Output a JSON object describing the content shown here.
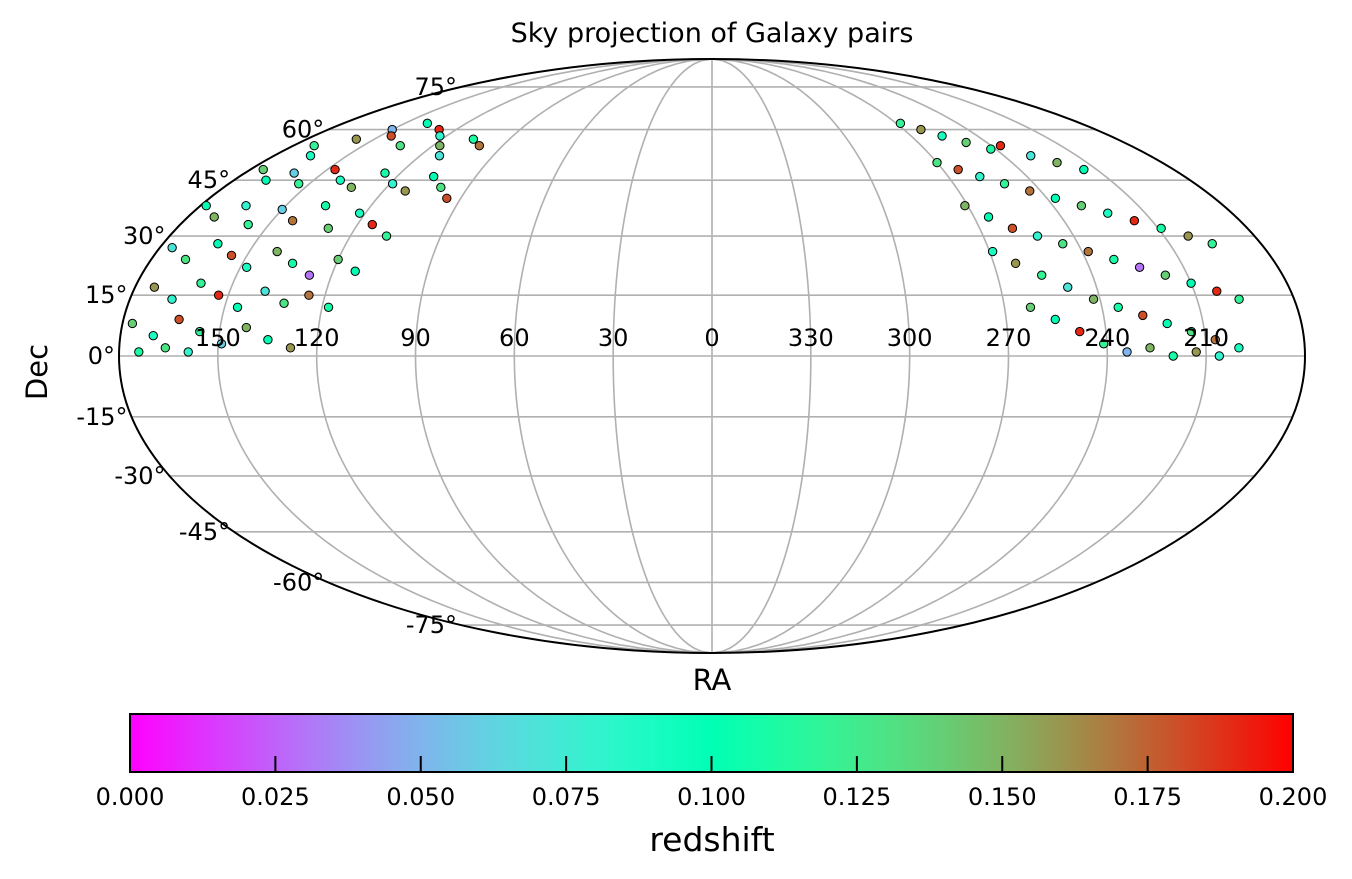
{
  "chart_data": {
    "type": "scatter",
    "projection": "mollweide",
    "title": "Sky projection of Galaxy pairs",
    "xlabel": "RA",
    "ylabel": "Dec",
    "ra_tick_labels": [
      "150",
      "120",
      "90",
      "60",
      "30",
      "0",
      "330",
      "300",
      "270",
      "240",
      "210"
    ],
    "ra_tick_values": [
      150,
      120,
      90,
      60,
      30,
      0,
      330,
      300,
      270,
      240,
      210
    ],
    "dec_tick_labels": [
      "-75°",
      "-60°",
      "-45°",
      "-30°",
      "-15°",
      "0°",
      "15°",
      "30°",
      "45°",
      "60°",
      "75°"
    ],
    "dec_tick_values": [
      -75,
      -60,
      -45,
      -30,
      -15,
      0,
      15,
      30,
      45,
      60,
      75
    ],
    "grid": true,
    "colorbar": {
      "label": "redshift",
      "colormap": "rainbow",
      "range": [
        0,
        0.2
      ],
      "tick_labels": [
        "0.000",
        "0.025",
        "0.050",
        "0.075",
        "0.100",
        "0.125",
        "0.150",
        "0.175",
        "0.200"
      ],
      "tick_values": [
        0,
        0.025,
        0.05,
        0.075,
        0.1,
        0.125,
        0.15,
        0.175,
        0.2
      ],
      "orientation": "horizontal",
      "placement": "bottom"
    },
    "points": [
      {
        "ra": 171,
        "dec": 55,
        "z": 0.12
      },
      {
        "ra": 165,
        "dec": 52,
        "z": 0.09
      },
      {
        "ra": 158,
        "dec": 57,
        "z": 0.16
      },
      {
        "ra": 150,
        "dec": 60,
        "z": 0.05
      },
      {
        "ra": 145,
        "dec": 58,
        "z": 0.18
      },
      {
        "ra": 139,
        "dec": 62,
        "z": 0.1
      },
      {
        "ra": 134,
        "dec": 55,
        "z": 0.13
      },
      {
        "ra": 128,
        "dec": 60,
        "z": 0.19
      },
      {
        "ra": 123,
        "dec": 58,
        "z": 0.08
      },
      {
        "ra": 117,
        "dec": 55,
        "z": 0.15
      },
      {
        "ra": 112,
        "dec": 52,
        "z": 0.07
      },
      {
        "ra": 106,
        "dec": 57,
        "z": 0.11
      },
      {
        "ra": 100,
        "dec": 55,
        "z": 0.17
      },
      {
        "ra": 175,
        "dec": 48,
        "z": 0.14
      },
      {
        "ra": 168,
        "dec": 45,
        "z": 0.1
      },
      {
        "ra": 161,
        "dec": 47,
        "z": 0.06
      },
      {
        "ra": 154,
        "dec": 44,
        "z": 0.12
      },
      {
        "ra": 147,
        "dec": 48,
        "z": 0.19
      },
      {
        "ra": 140,
        "dec": 45,
        "z": 0.09
      },
      {
        "ra": 133,
        "dec": 43,
        "z": 0.15
      },
      {
        "ra": 126,
        "dec": 47,
        "z": 0.11
      },
      {
        "ra": 119,
        "dec": 44,
        "z": 0.08
      },
      {
        "ra": 112,
        "dec": 42,
        "z": 0.16
      },
      {
        "ra": 106,
        "dec": 46,
        "z": 0.1
      },
      {
        "ra": 100,
        "dec": 43,
        "z": 0.13
      },
      {
        "ra": 95,
        "dec": 40,
        "z": 0.18
      },
      {
        "ra": 178,
        "dec": 38,
        "z": 0.1
      },
      {
        "ra": 171,
        "dec": 35,
        "z": 0.15
      },
      {
        "ra": 164,
        "dec": 38,
        "z": 0.08
      },
      {
        "ra": 157,
        "dec": 33,
        "z": 0.12
      },
      {
        "ra": 150,
        "dec": 37,
        "z": 0.06
      },
      {
        "ra": 143,
        "dec": 34,
        "z": 0.17
      },
      {
        "ra": 136,
        "dec": 38,
        "z": 0.11
      },
      {
        "ra": 129,
        "dec": 32,
        "z": 0.14
      },
      {
        "ra": 122,
        "dec": 36,
        "z": 0.09
      },
      {
        "ra": 115,
        "dec": 33,
        "z": 0.19
      },
      {
        "ra": 108,
        "dec": 30,
        "z": 0.12
      },
      {
        "ra": 176,
        "dec": 27,
        "z": 0.07
      },
      {
        "ra": 169,
        "dec": 24,
        "z": 0.13
      },
      {
        "ra": 162,
        "dec": 28,
        "z": 0.1
      },
      {
        "ra": 155,
        "dec": 25,
        "z": 0.18
      },
      {
        "ra": 148,
        "dec": 22,
        "z": 0.09
      },
      {
        "ra": 141,
        "dec": 26,
        "z": 0.15
      },
      {
        "ra": 134,
        "dec": 23,
        "z": 0.11
      },
      {
        "ra": 127,
        "dec": 20,
        "z": 0.03
      },
      {
        "ra": 120,
        "dec": 24,
        "z": 0.14
      },
      {
        "ra": 113,
        "dec": 21,
        "z": 0.1
      },
      {
        "ra": 174,
        "dec": 17,
        "z": 0.16
      },
      {
        "ra": 167,
        "dec": 14,
        "z": 0.08
      },
      {
        "ra": 160,
        "dec": 18,
        "z": 0.12
      },
      {
        "ra": 153,
        "dec": 15,
        "z": 0.19
      },
      {
        "ra": 146,
        "dec": 12,
        "z": 0.1
      },
      {
        "ra": 139,
        "dec": 16,
        "z": 0.07
      },
      {
        "ra": 132,
        "dec": 13,
        "z": 0.13
      },
      {
        "ra": 125,
        "dec": 15,
        "z": 0.17
      },
      {
        "ra": 118,
        "dec": 12,
        "z": 0.11
      },
      {
        "ra": 177,
        "dec": 8,
        "z": 0.14
      },
      {
        "ra": 170,
        "dec": 5,
        "z": 0.09
      },
      {
        "ra": 163,
        "dec": 9,
        "z": 0.18
      },
      {
        "ra": 156,
        "dec": 6,
        "z": 0.12
      },
      {
        "ra": 149,
        "dec": 3,
        "z": 0.06
      },
      {
        "ra": 142,
        "dec": 7,
        "z": 0.15
      },
      {
        "ra": 135,
        "dec": 4,
        "z": 0.1
      },
      {
        "ra": 128,
        "dec": 2,
        "z": 0.16
      },
      {
        "ra": 174,
        "dec": 1,
        "z": 0.11
      },
      {
        "ra": 166,
        "dec": 2,
        "z": 0.13
      },
      {
        "ra": 159,
        "dec": 1,
        "z": 0.08
      },
      {
        "ra": 268,
        "dec": 62,
        "z": 0.12
      },
      {
        "ra": 262,
        "dec": 60,
        "z": 0.16
      },
      {
        "ra": 256,
        "dec": 58,
        "z": 0.09
      },
      {
        "ra": 249,
        "dec": 56,
        "z": 0.14
      },
      {
        "ra": 242,
        "dec": 54,
        "z": 0.11
      },
      {
        "ra": 236,
        "dec": 55,
        "z": 0.19
      },
      {
        "ra": 229,
        "dec": 52,
        "z": 0.07
      },
      {
        "ra": 222,
        "dec": 50,
        "z": 0.15
      },
      {
        "ra": 215,
        "dec": 48,
        "z": 0.1
      },
      {
        "ra": 270,
        "dec": 50,
        "z": 0.13
      },
      {
        "ra": 264,
        "dec": 48,
        "z": 0.18
      },
      {
        "ra": 258,
        "dec": 46,
        "z": 0.08
      },
      {
        "ra": 251,
        "dec": 44,
        "z": 0.12
      },
      {
        "ra": 244,
        "dec": 42,
        "z": 0.17
      },
      {
        "ra": 237,
        "dec": 40,
        "z": 0.1
      },
      {
        "ra": 230,
        "dec": 38,
        "z": 0.14
      },
      {
        "ra": 223,
        "dec": 36,
        "z": 0.09
      },
      {
        "ra": 216,
        "dec": 34,
        "z": 0.19
      },
      {
        "ra": 209,
        "dec": 32,
        "z": 0.11
      },
      {
        "ra": 202,
        "dec": 30,
        "z": 0.16
      },
      {
        "ra": 196,
        "dec": 28,
        "z": 0.12
      },
      {
        "ra": 271,
        "dec": 38,
        "z": 0.15
      },
      {
        "ra": 265,
        "dec": 35,
        "z": 0.1
      },
      {
        "ra": 259,
        "dec": 32,
        "z": 0.18
      },
      {
        "ra": 252,
        "dec": 30,
        "z": 0.08
      },
      {
        "ra": 245,
        "dec": 28,
        "z": 0.13
      },
      {
        "ra": 238,
        "dec": 26,
        "z": 0.17
      },
      {
        "ra": 231,
        "dec": 24,
        "z": 0.11
      },
      {
        "ra": 224,
        "dec": 22,
        "z": 0.03
      },
      {
        "ra": 217,
        "dec": 20,
        "z": 0.14
      },
      {
        "ra": 210,
        "dec": 18,
        "z": 0.1
      },
      {
        "ra": 203,
        "dec": 16,
        "z": 0.19
      },
      {
        "ra": 197,
        "dec": 14,
        "z": 0.12
      },
      {
        "ra": 269,
        "dec": 26,
        "z": 0.09
      },
      {
        "ra": 263,
        "dec": 23,
        "z": 0.16
      },
      {
        "ra": 256,
        "dec": 20,
        "z": 0.12
      },
      {
        "ra": 249,
        "dec": 17,
        "z": 0.07
      },
      {
        "ra": 242,
        "dec": 14,
        "z": 0.15
      },
      {
        "ra": 235,
        "dec": 12,
        "z": 0.11
      },
      {
        "ra": 228,
        "dec": 10,
        "z": 0.18
      },
      {
        "ra": 221,
        "dec": 8,
        "z": 0.1
      },
      {
        "ra": 214,
        "dec": 6,
        "z": 0.13
      },
      {
        "ra": 207,
        "dec": 4,
        "z": 0.17
      },
      {
        "ra": 200,
        "dec": 2,
        "z": 0.09
      },
      {
        "ra": 262,
        "dec": 12,
        "z": 0.14
      },
      {
        "ra": 255,
        "dec": 9,
        "z": 0.1
      },
      {
        "ra": 248,
        "dec": 6,
        "z": 0.19
      },
      {
        "ra": 241,
        "dec": 3,
        "z": 0.12
      },
      {
        "ra": 234,
        "dec": 1,
        "z": 0.05
      },
      {
        "ra": 227,
        "dec": 2,
        "z": 0.15
      },
      {
        "ra": 220,
        "dec": 0,
        "z": 0.11
      },
      {
        "ra": 213,
        "dec": 1,
        "z": 0.16
      },
      {
        "ra": 206,
        "dec": 0,
        "z": 0.08
      }
    ]
  }
}
